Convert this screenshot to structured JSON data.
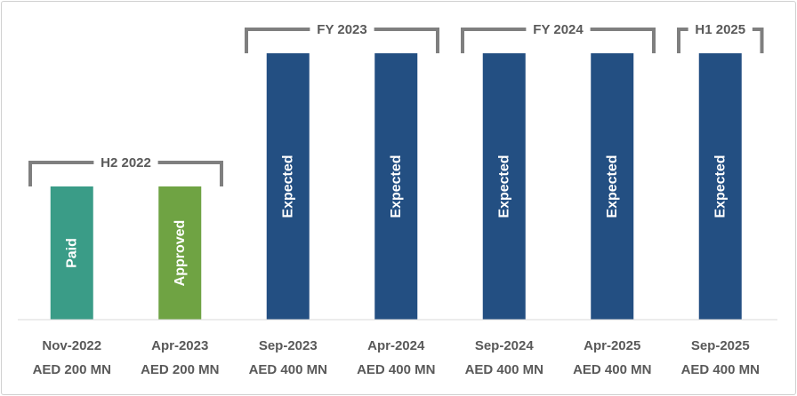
{
  "chart_data": {
    "type": "bar",
    "title": "",
    "xlabel": "",
    "ylabel": "",
    "categories": [
      "Nov-2022",
      "Apr-2023",
      "Sep-2023",
      "Apr-2024",
      "Sep-2024",
      "Apr-2025",
      "Sep-2025"
    ],
    "amount_labels": [
      "AED 200 MN",
      "AED 200 MN",
      "AED 400 MN",
      "AED 400 MN",
      "AED 400 MN",
      "AED 400 MN",
      "AED 400 MN"
    ],
    "values": [
      200,
      200,
      400,
      400,
      400,
      400,
      400
    ],
    "unit": "AED MN",
    "statuses": [
      "Paid",
      "Approved",
      "Expected",
      "Expected",
      "Expected",
      "Expected",
      "Expected"
    ],
    "ylim": [
      0,
      400
    ],
    "grid": false,
    "axes_visible": false,
    "periods": [
      {
        "label": "H2 2022",
        "start": 0,
        "end": 1
      },
      {
        "label": "FY 2023",
        "start": 2,
        "end": 3
      },
      {
        "label": "FY 2024",
        "start": 4,
        "end": 5
      },
      {
        "label": "H1 2025",
        "start": 6,
        "end": 6
      }
    ],
    "colors": {
      "Paid": "#3a9c87",
      "Approved": "#6fa343",
      "Expected": "#234f82",
      "bracket": "#7f7f7f",
      "baseline": "#d9d9d9"
    }
  }
}
